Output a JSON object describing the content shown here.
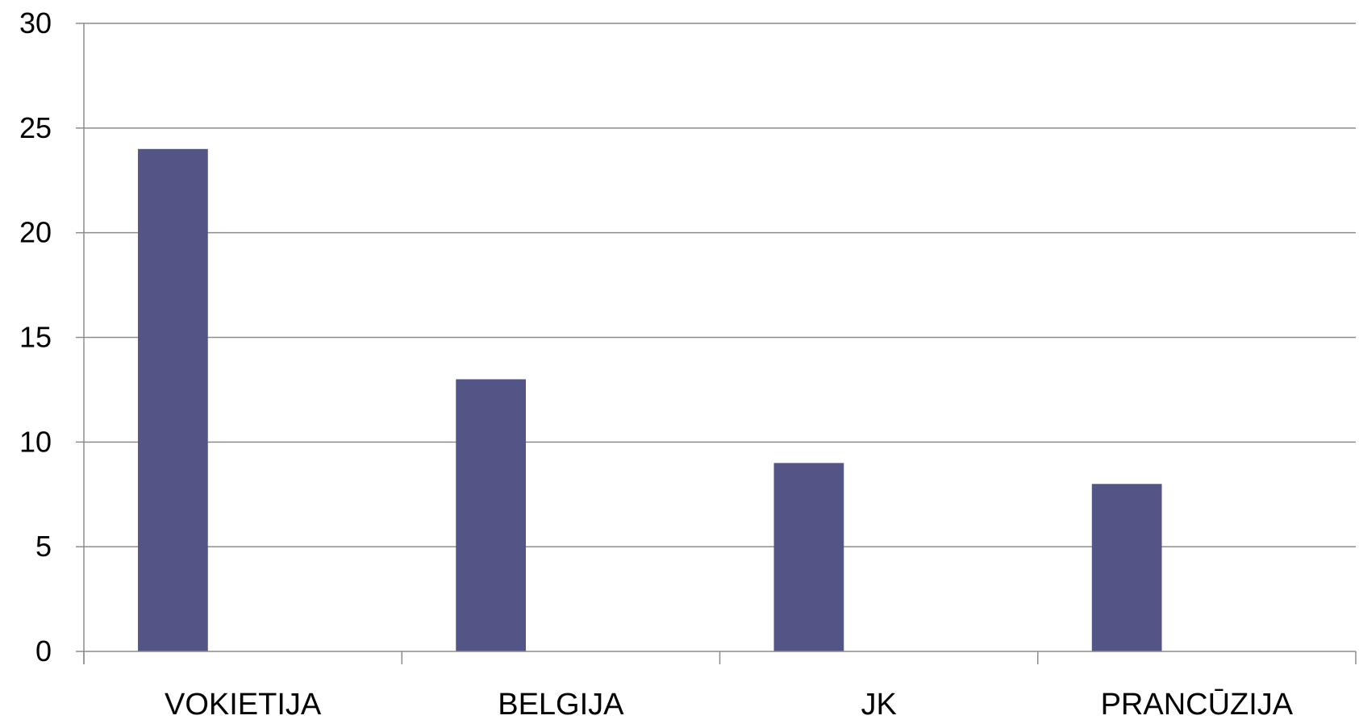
{
  "chart_data": {
    "type": "bar",
    "categories": [
      "VOKIETIJA",
      "BELGIJA",
      "JK",
      "PRANCŪZIJA"
    ],
    "values": [
      24,
      13,
      9,
      8
    ],
    "ylim": [
      0,
      30
    ],
    "yticks": [
      0,
      5,
      10,
      15,
      20,
      25,
      30
    ],
    "grid": true,
    "legend": "none",
    "bar_color": "#535587",
    "grid_color": "#8c8c8c",
    "axis_color": "#8c8c8c"
  }
}
